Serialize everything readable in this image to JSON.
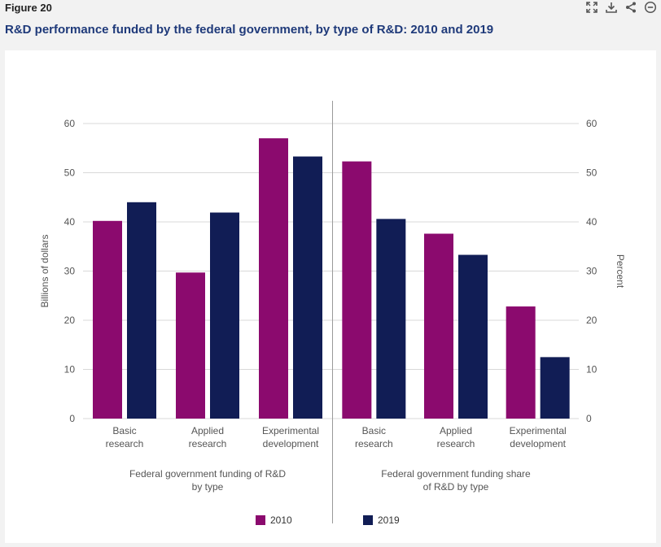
{
  "header": {
    "figure_label": "Figure 20",
    "title": "R&D performance funded by the federal government, by type of R&D: 2010 and 2019"
  },
  "toolbar": {
    "icons": [
      "expand-icon",
      "download-icon",
      "share-icon",
      "collapse-icon"
    ]
  },
  "colors": {
    "2010": "#8b0a6e",
    "2019": "#111d55",
    "grid": "#d9d9d9",
    "axis_text": "#555555"
  },
  "chart_data": {
    "type": "bar",
    "panels": [
      {
        "title": "Federal government funding of R&D by type",
        "title_lines": [
          "Federal government funding of R&D",
          "by type"
        ],
        "ylabel": "Billions of dollars",
        "ylim": [
          0,
          60
        ],
        "yticks": [
          0,
          10,
          20,
          30,
          40,
          50,
          60
        ],
        "categories": [
          [
            "Basic",
            "research"
          ],
          [
            "Applied",
            "research"
          ],
          [
            "Experimental",
            "development"
          ]
        ],
        "series": [
          {
            "name": "2010",
            "values": [
              40.2,
              29.7,
              57.0
            ]
          },
          {
            "name": "2019",
            "values": [
              44.0,
              41.9,
              53.3
            ]
          }
        ]
      },
      {
        "title": "Federal government funding share of R&D by type",
        "title_lines": [
          "Federal government funding share",
          "of R&D by type"
        ],
        "ylabel": "Percent",
        "ylim": [
          0,
          60
        ],
        "yticks": [
          0,
          10,
          20,
          30,
          40,
          50,
          60
        ],
        "categories": [
          [
            "Basic",
            "research"
          ],
          [
            "Applied",
            "research"
          ],
          [
            "Experimental",
            "development"
          ]
        ],
        "series": [
          {
            "name": "2010",
            "values": [
              52.3,
              37.6,
              22.8
            ]
          },
          {
            "name": "2019",
            "values": [
              40.6,
              33.3,
              12.5
            ]
          }
        ]
      }
    ],
    "legend": {
      "placement": "bottom",
      "entries": [
        "2010",
        "2019"
      ]
    },
    "grid": true
  }
}
